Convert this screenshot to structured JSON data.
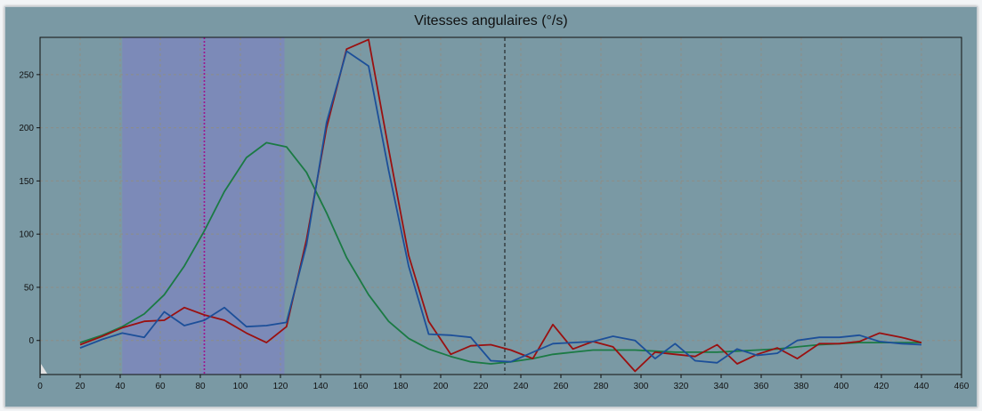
{
  "chart_data": {
    "type": "line",
    "title": "Vitesses angulaires (°/s)",
    "xlabel": "",
    "ylabel": "",
    "xlim": [
      0,
      460
    ],
    "ylim": [
      -32,
      285
    ],
    "x_ticks": [
      0,
      20,
      40,
      60,
      80,
      100,
      120,
      140,
      160,
      180,
      200,
      220,
      240,
      260,
      280,
      300,
      320,
      340,
      360,
      380,
      400,
      420,
      440,
      460
    ],
    "y_ticks": [
      0,
      50,
      100,
      150,
      200,
      250
    ],
    "grid": true,
    "highlight_band": {
      "x_start": 41,
      "x_end": 122,
      "color": "#7c8ab8"
    },
    "markers": [
      {
        "x": 82,
        "color": "#a0158a",
        "style": "dotted"
      },
      {
        "x": 232,
        "color": "#111111",
        "style": "dashed"
      }
    ],
    "series": [
      {
        "color": "#1b7a44",
        "x": [
          20,
          31,
          41,
          52,
          62,
          72,
          82,
          92,
          103,
          113,
          123,
          133,
          143,
          153,
          164,
          174,
          184,
          194,
          205,
          215,
          225,
          235,
          246,
          256,
          266,
          276,
          286,
          297,
          307,
          317,
          327,
          338,
          348,
          358,
          368,
          378,
          389,
          399,
          409,
          419,
          430,
          440
        ],
        "values": [
          -2,
          5,
          13,
          25,
          43,
          70,
          103,
          140,
          172,
          186,
          182,
          158,
          120,
          78,
          43,
          18,
          2,
          -8,
          -15,
          -20,
          -22,
          -20,
          -17,
          -13,
          -11,
          -9,
          -9,
          -9,
          -10,
          -11,
          -11,
          -11,
          -10,
          -9,
          -8,
          -6,
          -4,
          -3,
          -2,
          -2,
          -2,
          -2
        ]
      },
      {
        "color": "#9a1010",
        "x": [
          20,
          31,
          41,
          52,
          62,
          72,
          82,
          92,
          103,
          113,
          123,
          133,
          143,
          153,
          164,
          174,
          184,
          194,
          205,
          215,
          225,
          235,
          246,
          256,
          266,
          276,
          286,
          297,
          307,
          317,
          327,
          338,
          348,
          358,
          368,
          378,
          389,
          399,
          409,
          419,
          430,
          440
        ],
        "values": [
          -4,
          4,
          12,
          18,
          19,
          31,
          24,
          19,
          7,
          -2,
          13,
          95,
          200,
          274,
          283,
          180,
          80,
          18,
          -13,
          -5,
          -4,
          -9,
          -17,
          15,
          -8,
          -1,
          -6,
          -29,
          -11,
          -13,
          -15,
          -4,
          -22,
          -13,
          -7,
          -17,
          -3,
          -3,
          -1,
          7,
          3,
          -2
        ]
      },
      {
        "color": "#1c4f99",
        "x": [
          20,
          31,
          41,
          52,
          62,
          72,
          82,
          92,
          103,
          113,
          123,
          133,
          143,
          153,
          164,
          174,
          184,
          194,
          205,
          215,
          225,
          235,
          246,
          256,
          266,
          276,
          286,
          297,
          307,
          317,
          327,
          338,
          348,
          358,
          368,
          378,
          389,
          399,
          409,
          419,
          430,
          440
        ],
        "values": [
          -7,
          1,
          7,
          3,
          27,
          14,
          19,
          31,
          13,
          14,
          17,
          90,
          205,
          272,
          258,
          160,
          70,
          6,
          5,
          3,
          -19,
          -20,
          -11,
          -3,
          -2,
          -1,
          4,
          0,
          -17,
          -3,
          -19,
          -21,
          -8,
          -14,
          -12,
          0,
          3,
          3,
          5,
          -1,
          -3,
          -4
        ]
      }
    ]
  }
}
